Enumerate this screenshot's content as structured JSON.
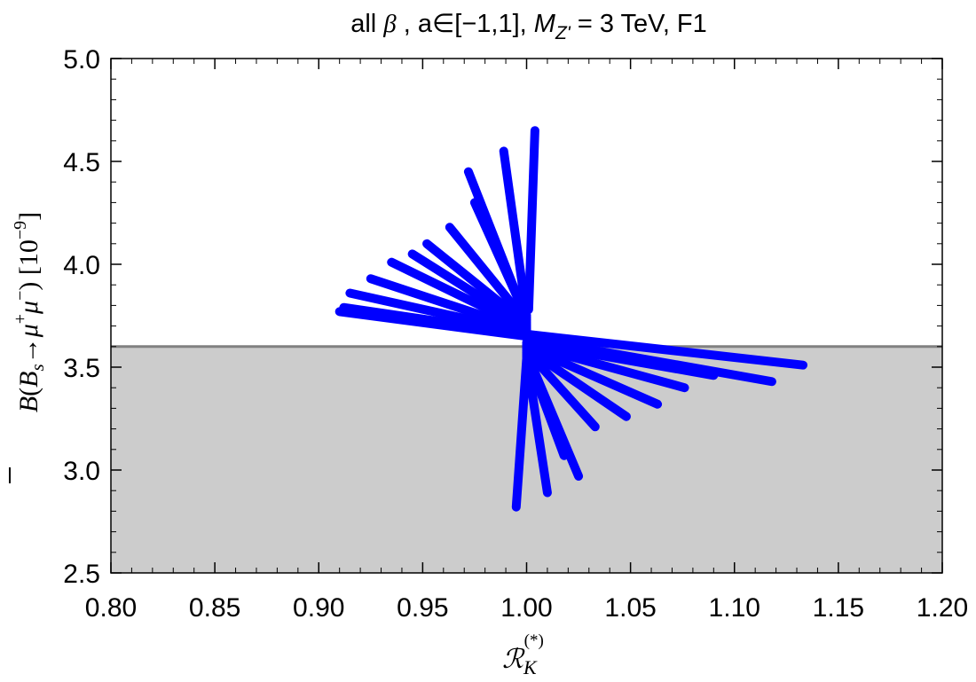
{
  "chart_data": {
    "type": "line",
    "title": {
      "part1": "all ",
      "beta": "β",
      "part2": " , a∈[−1,1],  ",
      "M": "M",
      "sub": "Z'",
      "part3": " = 3 TeV, F1"
    },
    "xlabel": {
      "main": "ℛ",
      "sub": "K",
      "sup": "(*)"
    },
    "ylabel": {
      "B": "B",
      "open": "(",
      "Bs": "B",
      "s": "s",
      "arrow": "→",
      "mu1": "μ",
      "plus": "+",
      "mu2": "μ",
      "minus": "−",
      "close": ") [10",
      "exp": "−9",
      "end": "]"
    },
    "xlim": [
      0.8,
      1.2
    ],
    "ylim": [
      2.5,
      5.0
    ],
    "x_ticks": [
      "0.80",
      "0.85",
      "0.90",
      "0.95",
      "1.00",
      "1.05",
      "1.10",
      "1.15",
      "1.20"
    ],
    "y_ticks": [
      "2.5",
      "3.0",
      "3.5",
      "4.0",
      "4.5",
      "5.0"
    ],
    "reference_line": {
      "y": 3.6,
      "shade_below": true
    },
    "colors": {
      "series": "#0000ff",
      "shade": "#cccccc",
      "reference": "#808080"
    },
    "grid": false,
    "series": [
      {
        "x": [
          1.0,
          0.91
        ],
        "y": [
          3.65,
          3.77
        ]
      },
      {
        "x": [
          1.0,
          0.912
        ],
        "y": [
          3.66,
          3.79
        ]
      },
      {
        "x": [
          1.0,
          0.915
        ],
        "y": [
          3.67,
          3.86
        ]
      },
      {
        "x": [
          1.0,
          0.925
        ],
        "y": [
          3.68,
          3.93
        ]
      },
      {
        "x": [
          1.0,
          0.935
        ],
        "y": [
          3.69,
          4.01
        ]
      },
      {
        "x": [
          1.0,
          0.945
        ],
        "y": [
          3.7,
          4.05
        ]
      },
      {
        "x": [
          1.0,
          0.952
        ],
        "y": [
          3.71,
          4.1
        ]
      },
      {
        "x": [
          1.0,
          0.963
        ],
        "y": [
          3.72,
          4.18
        ]
      },
      {
        "x": [
          1.0,
          0.972
        ],
        "y": [
          3.73,
          4.45
        ]
      },
      {
        "x": [
          1.0,
          0.975
        ],
        "y": [
          3.74,
          4.3
        ]
      },
      {
        "x": [
          1.0,
          0.989
        ],
        "y": [
          3.75,
          4.55
        ]
      },
      {
        "x": [
          1.001,
          1.004
        ],
        "y": [
          3.78,
          4.65
        ]
      },
      {
        "x": [
          1.0,
          1.133
        ],
        "y": [
          3.66,
          3.51
        ]
      },
      {
        "x": [
          1.0,
          1.118
        ],
        "y": [
          3.64,
          3.43
        ]
      },
      {
        "x": [
          1.0,
          1.09
        ],
        "y": [
          3.62,
          3.46
        ]
      },
      {
        "x": [
          1.0,
          1.076
        ],
        "y": [
          3.61,
          3.4
        ]
      },
      {
        "x": [
          1.0,
          1.063
        ],
        "y": [
          3.6,
          3.32
        ]
      },
      {
        "x": [
          1.0,
          1.048
        ],
        "y": [
          3.59,
          3.26
        ]
      },
      {
        "x": [
          1.0,
          1.033
        ],
        "y": [
          3.58,
          3.21
        ]
      },
      {
        "x": [
          1.0,
          1.025
        ],
        "y": [
          3.57,
          2.97
        ]
      },
      {
        "x": [
          1.0,
          1.018
        ],
        "y": [
          3.56,
          3.07
        ]
      },
      {
        "x": [
          1.0,
          1.01
        ],
        "y": [
          3.55,
          2.89
        ]
      },
      {
        "x": [
          1.0,
          0.995
        ],
        "y": [
          3.54,
          2.82
        ]
      }
    ]
  }
}
